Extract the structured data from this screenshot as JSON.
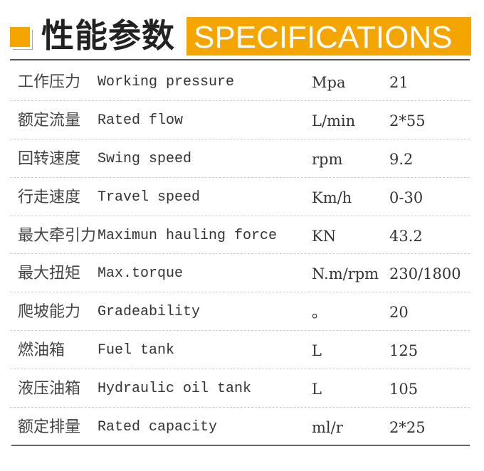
{
  "header": {
    "title_cn": "性能参数",
    "title_en": "SPECIFICATIONS",
    "accent": "#f5a500",
    "icon": "orange-square-icon"
  },
  "specs": [
    {
      "cn": "工作压力",
      "en": "Working pressure",
      "unit": "Mpa",
      "value": "21"
    },
    {
      "cn": "额定流量",
      "en": "Rated flow",
      "unit": "L/min",
      "value": "2*55"
    },
    {
      "cn": "回转速度",
      "en": "Swing speed",
      "unit": "rpm",
      "value": "9.2"
    },
    {
      "cn": "行走速度",
      "en": "Travel speed",
      "unit": "Km/h",
      "value": "0-30"
    },
    {
      "cn": "最大牵引力",
      "en": "Maximun hauling force",
      "unit": "KN",
      "value": "43.2"
    },
    {
      "cn": "最大扭矩",
      "en": "Max.torque",
      "unit": "N.m/rpm",
      "value": "230/1800"
    },
    {
      "cn": "爬坡能力",
      "en": "Gradeability",
      "unit": "。",
      "value": "20"
    },
    {
      "cn": "燃油箱",
      "en": "Fuel tank",
      "unit": "L",
      "value": "125"
    },
    {
      "cn": "液压油箱",
      "en": "Hydraulic oil tank",
      "unit": "L",
      "value": "105"
    },
    {
      "cn": "额定排量",
      "en": "Rated capacity",
      "unit": "ml/r",
      "value": "2*25"
    }
  ]
}
